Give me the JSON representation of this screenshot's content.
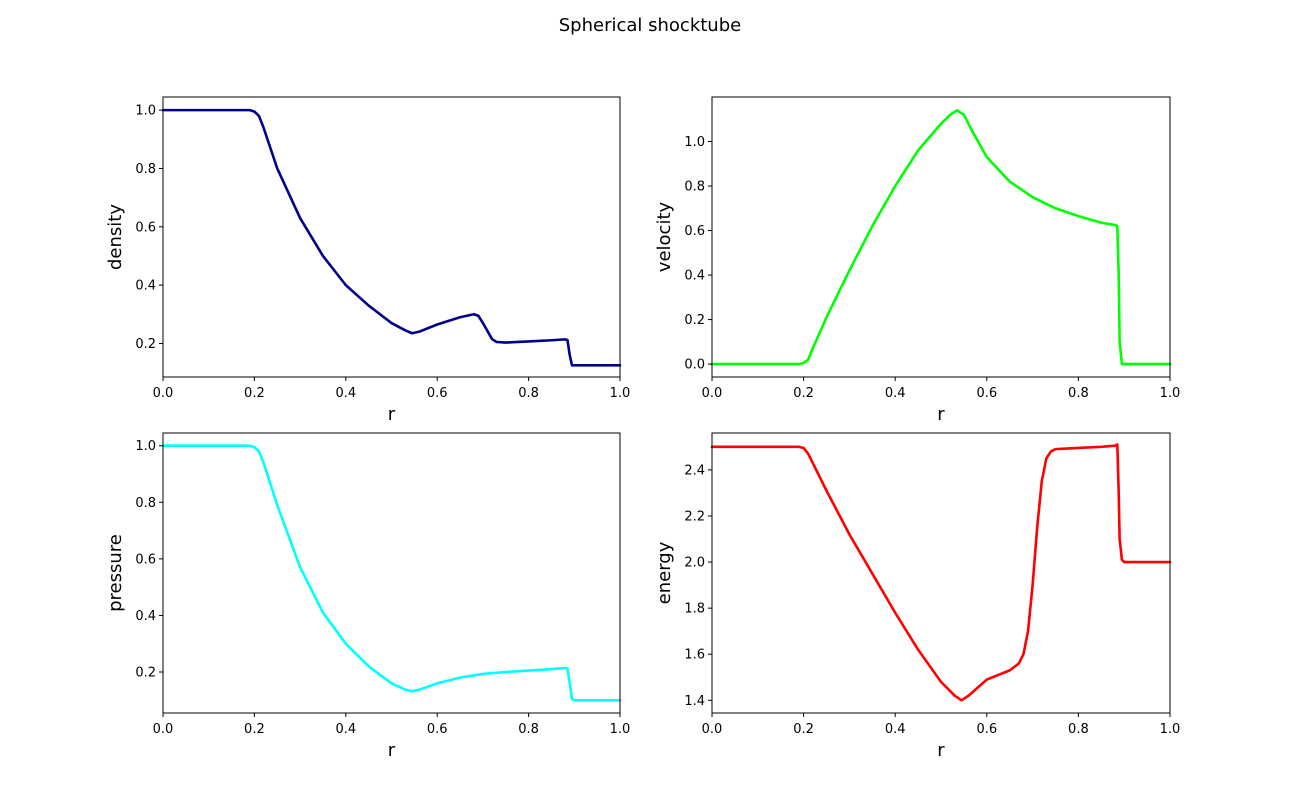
{
  "title": "Spherical shocktube",
  "chart_data": [
    {
      "type": "line",
      "key": "density",
      "title": "",
      "xlabel": "r",
      "ylabel": "density",
      "xlim": [
        0,
        1
      ],
      "ylim": [
        0.085,
        1.045
      ],
      "xticks": [
        "0.0",
        "0.2",
        "0.4",
        "0.6",
        "0.8",
        "1.0"
      ],
      "yticks": [
        "0.2",
        "0.4",
        "0.6",
        "0.8",
        "1.0"
      ],
      "color": "#00008B",
      "series": [
        {
          "name": "density",
          "x": [
            0,
            0.1,
            0.19,
            0.2,
            0.21,
            0.22,
            0.25,
            0.3,
            0.35,
            0.4,
            0.45,
            0.5,
            0.53,
            0.545,
            0.56,
            0.6,
            0.65,
            0.68,
            0.69,
            0.7,
            0.72,
            0.73,
            0.75,
            0.8,
            0.85,
            0.88,
            0.885,
            0.89,
            0.895,
            0.9,
            0.95,
            1.0
          ],
          "values": [
            1.0,
            1.0,
            1.0,
            0.995,
            0.98,
            0.94,
            0.8,
            0.63,
            0.5,
            0.4,
            0.33,
            0.27,
            0.245,
            0.235,
            0.24,
            0.265,
            0.29,
            0.3,
            0.295,
            0.27,
            0.215,
            0.205,
            0.203,
            0.207,
            0.211,
            0.214,
            0.212,
            0.16,
            0.125,
            0.125,
            0.125,
            0.125
          ]
        }
      ]
    },
    {
      "type": "line",
      "key": "velocity",
      "title": "",
      "xlabel": "r",
      "ylabel": "velocity",
      "xlim": [
        0,
        1
      ],
      "ylim": [
        -0.058,
        1.2
      ],
      "xticks": [
        "0.0",
        "0.2",
        "0.4",
        "0.6",
        "0.8",
        "1.0"
      ],
      "yticks": [
        "0.0",
        "0.2",
        "0.4",
        "0.6",
        "0.8",
        "1.0"
      ],
      "color": "#00FF00",
      "series": [
        {
          "name": "velocity",
          "x": [
            0,
            0.1,
            0.19,
            0.2,
            0.21,
            0.22,
            0.25,
            0.3,
            0.35,
            0.4,
            0.45,
            0.5,
            0.52,
            0.535,
            0.55,
            0.57,
            0.6,
            0.65,
            0.7,
            0.75,
            0.8,
            0.85,
            0.88,
            0.885,
            0.888,
            0.89,
            0.895,
            0.9,
            0.95,
            1.0
          ],
          "values": [
            0.0,
            0.0,
            0.0,
            0.005,
            0.02,
            0.07,
            0.21,
            0.42,
            0.62,
            0.8,
            0.96,
            1.08,
            1.12,
            1.14,
            1.12,
            1.04,
            0.93,
            0.82,
            0.75,
            0.7,
            0.665,
            0.635,
            0.625,
            0.62,
            0.4,
            0.1,
            0.0,
            0.0,
            0.0,
            0.0
          ]
        }
      ]
    },
    {
      "type": "line",
      "key": "pressure",
      "title": "",
      "xlabel": "r",
      "ylabel": "pressure",
      "xlim": [
        0,
        1
      ],
      "ylim": [
        0.055,
        1.045
      ],
      "xticks": [
        "0.0",
        "0.2",
        "0.4",
        "0.6",
        "0.8",
        "1.0"
      ],
      "yticks": [
        "0.2",
        "0.4",
        "0.6",
        "0.8",
        "1.0"
      ],
      "color": "#00FFFF",
      "series": [
        {
          "name": "pressure",
          "x": [
            0,
            0.1,
            0.19,
            0.2,
            0.21,
            0.22,
            0.25,
            0.3,
            0.35,
            0.4,
            0.45,
            0.5,
            0.53,
            0.545,
            0.56,
            0.6,
            0.65,
            0.7,
            0.75,
            0.8,
            0.85,
            0.88,
            0.885,
            0.89,
            0.895,
            0.9,
            0.95,
            1.0
          ],
          "values": [
            1.0,
            1.0,
            1.0,
            0.995,
            0.98,
            0.94,
            0.79,
            0.57,
            0.41,
            0.3,
            0.22,
            0.16,
            0.138,
            0.132,
            0.137,
            0.16,
            0.18,
            0.193,
            0.2,
            0.205,
            0.21,
            0.214,
            0.212,
            0.16,
            0.105,
            0.1,
            0.1,
            0.1
          ]
        }
      ]
    },
    {
      "type": "line",
      "key": "energy",
      "title": "",
      "xlabel": "r",
      "ylabel": "energy",
      "xlim": [
        0,
        1
      ],
      "ylim": [
        1.345,
        2.56
      ],
      "xticks": [
        "0.0",
        "0.2",
        "0.4",
        "0.6",
        "0.8",
        "1.0"
      ],
      "yticks": [
        "1.4",
        "1.6",
        "1.8",
        "2.0",
        "2.2",
        "2.4"
      ],
      "color": "#FF0000",
      "series": [
        {
          "name": "energy",
          "x": [
            0,
            0.1,
            0.19,
            0.2,
            0.21,
            0.22,
            0.25,
            0.3,
            0.35,
            0.4,
            0.45,
            0.5,
            0.53,
            0.545,
            0.56,
            0.6,
            0.65,
            0.67,
            0.68,
            0.69,
            0.7,
            0.71,
            0.72,
            0.73,
            0.74,
            0.75,
            0.8,
            0.85,
            0.88,
            0.885,
            0.888,
            0.89,
            0.895,
            0.9,
            0.95,
            1.0
          ],
          "values": [
            2.5,
            2.5,
            2.5,
            2.495,
            2.47,
            2.43,
            2.31,
            2.12,
            1.95,
            1.78,
            1.62,
            1.48,
            1.42,
            1.4,
            1.42,
            1.49,
            1.53,
            1.56,
            1.6,
            1.7,
            1.9,
            2.15,
            2.35,
            2.45,
            2.48,
            2.49,
            2.495,
            2.5,
            2.505,
            2.51,
            2.3,
            2.1,
            2.01,
            2.0,
            2.0,
            2.0
          ]
        }
      ]
    }
  ]
}
